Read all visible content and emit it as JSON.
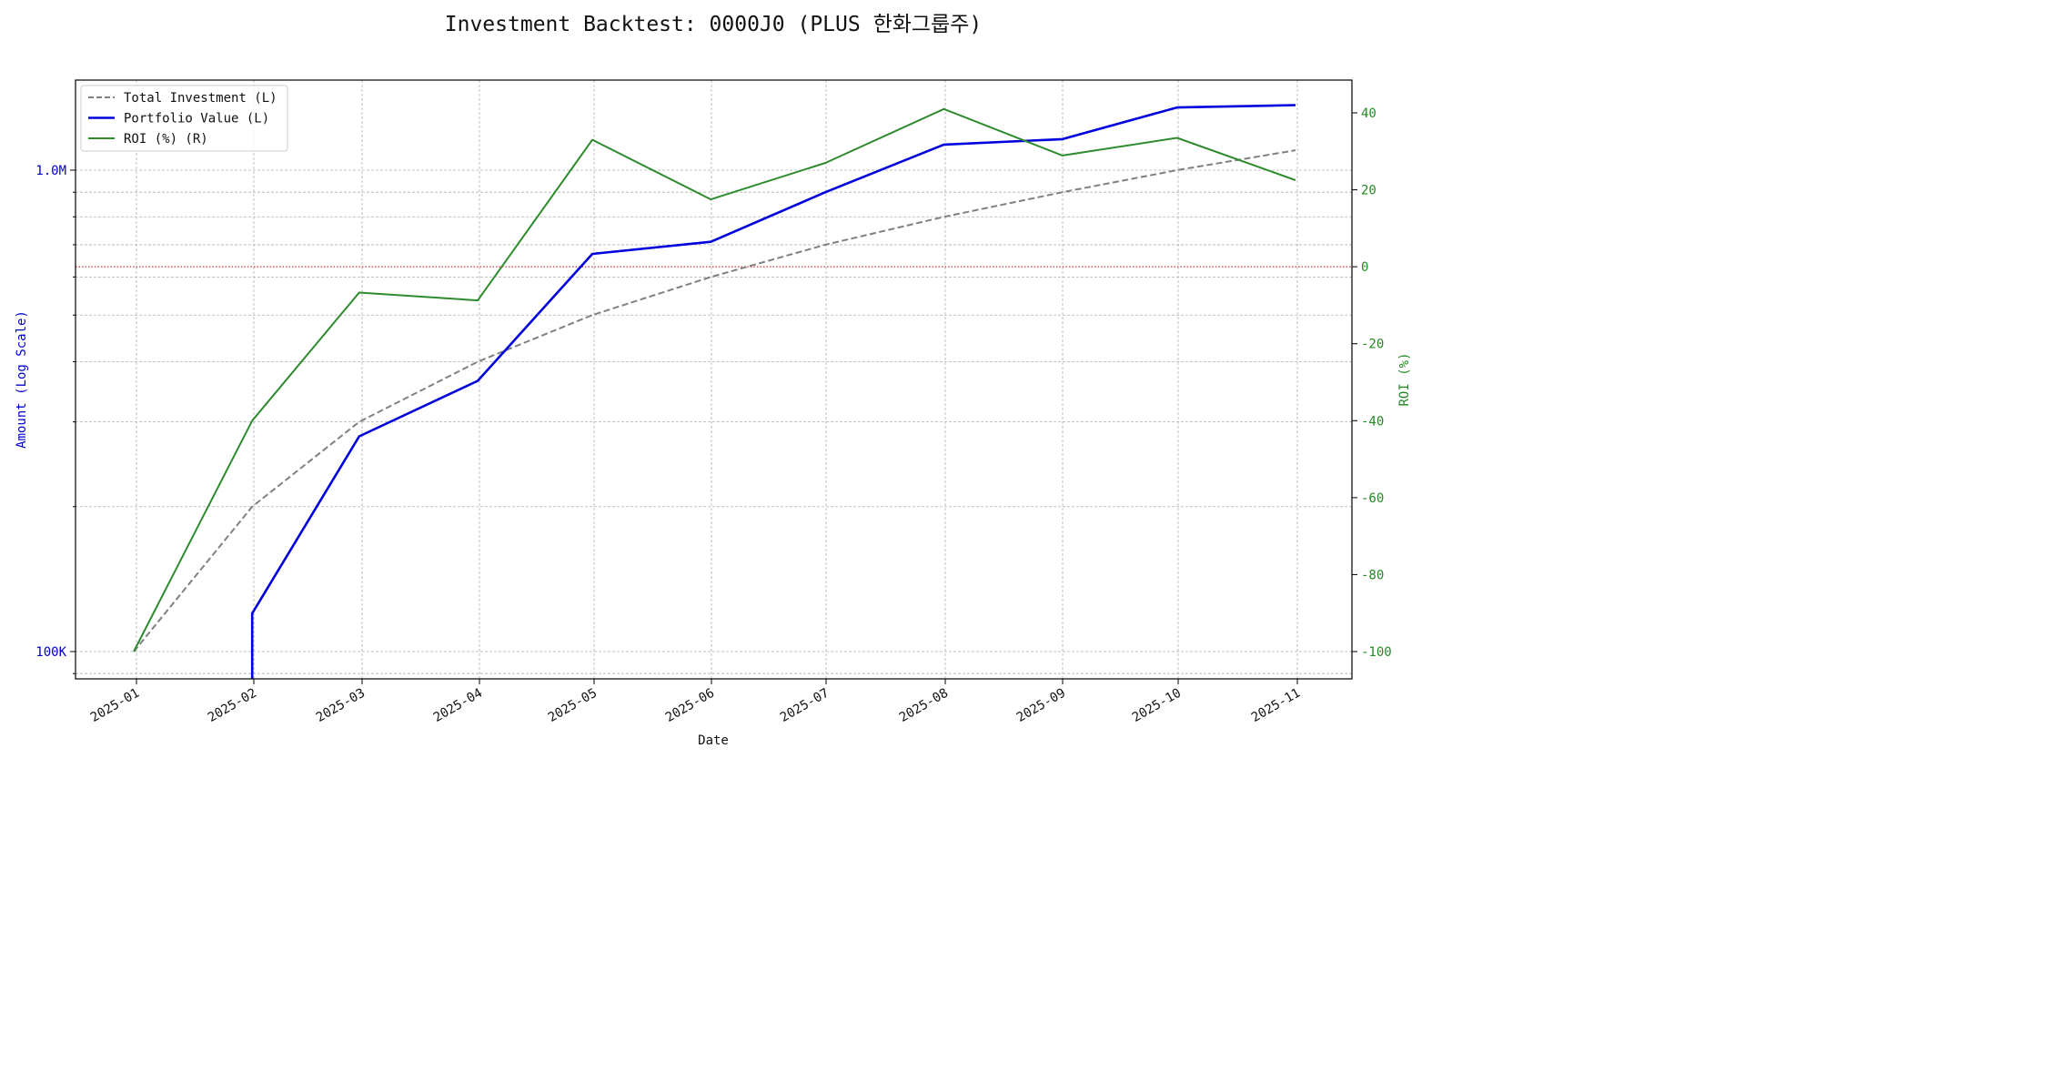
{
  "chart_data": {
    "type": "line",
    "title": "Investment Backtest: 0000J0 (PLUS 한화그룹주)",
    "xlabel": "Date",
    "ylabel_left": "Amount (Log Scale)",
    "ylabel_right": "ROI (%)",
    "left_axis_scale": "log",
    "left_tick_labels": [
      {
        "value": 100000,
        "label": "100K"
      },
      {
        "value": 1000000,
        "label": "1.0M"
      }
    ],
    "right_ticks": [
      -100,
      -80,
      -60,
      -40,
      -20,
      0,
      20,
      40
    ],
    "right_ylim": [
      -107,
      48
    ],
    "x_tick_labels": [
      "2025-01",
      "2025-02",
      "2025-03",
      "2025-04",
      "2025-05",
      "2025-06",
      "2025-07",
      "2025-08",
      "2025-09",
      "2025-10",
      "2025-11"
    ],
    "x": [
      "2024-12-31",
      "2025-01-31",
      "2025-02-28",
      "2025-03-31",
      "2025-04-30",
      "2025-05-31",
      "2025-06-30",
      "2025-07-31",
      "2025-08-31",
      "2025-09-30",
      "2025-10-31"
    ],
    "zero_line": 0,
    "grid": true,
    "legend_position": "top-left",
    "series": [
      {
        "name": "Total Investment (L)",
        "axis": "left",
        "style": "dashed",
        "color": "#808080",
        "values": [
          100000,
          200000,
          300000,
          400000,
          500000,
          600000,
          700000,
          800000,
          900000,
          1000000,
          1100000
        ]
      },
      {
        "name": "Portfolio Value (L)",
        "axis": "left",
        "style": "solid",
        "color": "#0000dd",
        "x_start": "2025-01-31",
        "values": [
          null,
          120000,
          280000,
          365000,
          670000,
          710000,
          900000,
          1130000,
          1160000,
          1350000,
          1365000
        ]
      },
      {
        "name": "ROI (%) (R)",
        "axis": "right",
        "style": "solid",
        "color": "#2e8b2e",
        "values": [
          -100,
          -40,
          -6.7,
          -8.75,
          33,
          17.5,
          27,
          41,
          28.9,
          33.5,
          22.5
        ]
      }
    ]
  }
}
